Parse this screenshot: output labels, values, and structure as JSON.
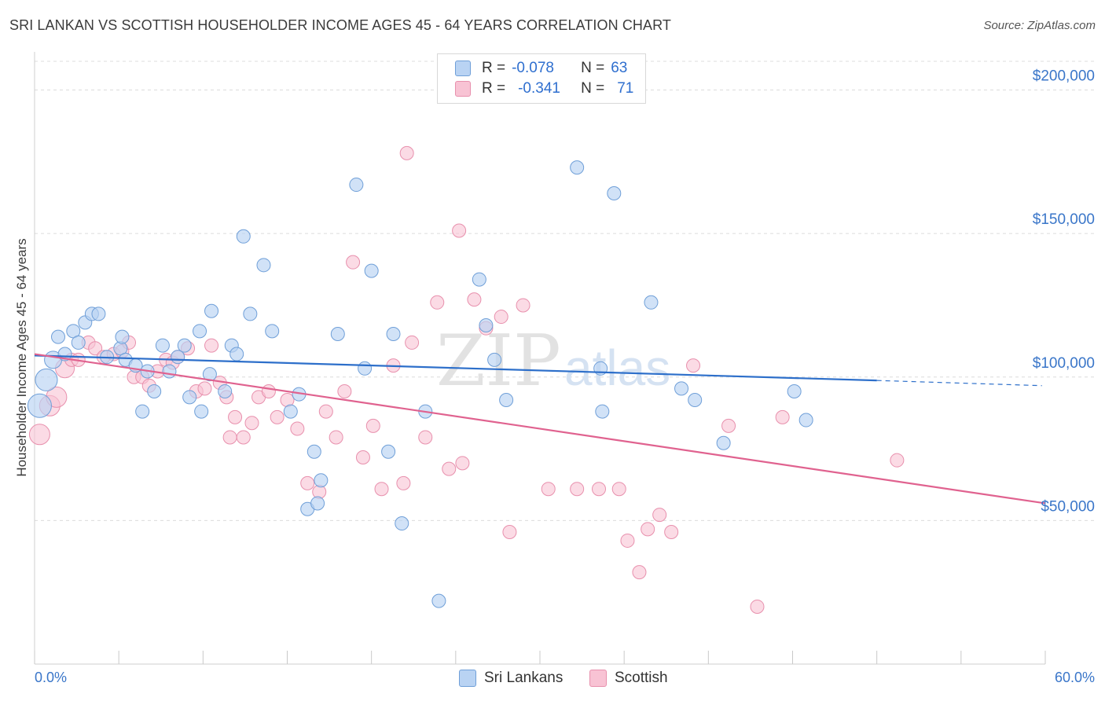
{
  "title": "SRI LANKAN VS SCOTTISH HOUSEHOLDER INCOME AGES 45 - 64 YEARS CORRELATION CHART",
  "source": "Source: ZipAtlas.com",
  "watermark": {
    "zip": "ZIP",
    "atlas": "atlas"
  },
  "legend_stats": {
    "row1": {
      "r_label": "R =",
      "r_value": "-0.078",
      "n_label": "N =",
      "n_value": "63"
    },
    "row2": {
      "r_label": "R =",
      "r_value": "-0.341",
      "n_label": "N =",
      "n_value": "71"
    }
  },
  "colors": {
    "blue_fill": "#b9d3f3",
    "blue_stroke": "#6f9fd8",
    "blue_line": "#2d6fca",
    "pink_fill": "#f8c3d4",
    "pink_stroke": "#e890ad",
    "pink_line": "#e0628f",
    "axis_label": "#3a76c9",
    "grid": "#dcdcdc"
  },
  "chart_data": {
    "type": "scatter",
    "title": "SRI LANKAN VS SCOTTISH HOUSEHOLDER INCOME AGES 45 - 64 YEARS CORRELATION CHART",
    "xlabel": "",
    "ylabel": "Householder Income Ages 45 - 64 years",
    "xlim": [
      0,
      60
    ],
    "ylim": [
      0,
      210000
    ],
    "x_tick_labels": [
      "0.0%",
      "60.0%"
    ],
    "y_ticks": [
      50000,
      100000,
      150000,
      200000
    ],
    "y_tick_labels": [
      "$50,000",
      "$100,000",
      "$150,000",
      "$200,000"
    ],
    "grid": true,
    "legend_position": "bottom-center",
    "series": [
      {
        "name": "Sri Lankans",
        "color": "#b9d3f3",
        "r": -0.078,
        "n": 63,
        "trend": {
          "x": [
            0,
            50
          ],
          "y": [
            107500,
            98800
          ],
          "dashed_extension_to_x": 59.8,
          "dashed_end_y": 97000
        },
        "points": [
          [
            0.3,
            90000
          ],
          [
            0.7,
            99000
          ],
          [
            1.1,
            106000
          ],
          [
            1.4,
            114000
          ],
          [
            1.8,
            108000
          ],
          [
            2.3,
            116000
          ],
          [
            2.6,
            112000
          ],
          [
            3.0,
            119000
          ],
          [
            3.4,
            122000
          ],
          [
            3.8,
            122000
          ],
          [
            4.3,
            107000
          ],
          [
            5.1,
            110000
          ],
          [
            5.2,
            114000
          ],
          [
            5.4,
            106000
          ],
          [
            6.0,
            104000
          ],
          [
            6.4,
            88000
          ],
          [
            6.7,
            102000
          ],
          [
            7.1,
            95000
          ],
          [
            7.6,
            111000
          ],
          [
            8.0,
            102000
          ],
          [
            8.5,
            107000
          ],
          [
            8.9,
            111000
          ],
          [
            9.2,
            93000
          ],
          [
            9.8,
            116000
          ],
          [
            9.9,
            88000
          ],
          [
            10.4,
            101000
          ],
          [
            10.5,
            123000
          ],
          [
            11.3,
            95000
          ],
          [
            11.7,
            111000
          ],
          [
            12.0,
            108000
          ],
          [
            12.4,
            149000
          ],
          [
            12.8,
            122000
          ],
          [
            13.6,
            139000
          ],
          [
            14.1,
            116000
          ],
          [
            15.2,
            88000
          ],
          [
            15.7,
            94000
          ],
          [
            16.2,
            54000
          ],
          [
            16.6,
            74000
          ],
          [
            16.8,
            56000
          ],
          [
            17.0,
            64000
          ],
          [
            18.0,
            115000
          ],
          [
            19.1,
            167000
          ],
          [
            19.6,
            103000
          ],
          [
            20.0,
            137000
          ],
          [
            21.0,
            74000
          ],
          [
            21.3,
            115000
          ],
          [
            21.8,
            49000
          ],
          [
            23.2,
            88000
          ],
          [
            24.0,
            22000
          ],
          [
            26.4,
            134000
          ],
          [
            26.8,
            118000
          ],
          [
            27.3,
            106000
          ],
          [
            28.0,
            92000
          ],
          [
            32.2,
            173000
          ],
          [
            33.6,
            103000
          ],
          [
            33.7,
            88000
          ],
          [
            34.4,
            164000
          ],
          [
            36.6,
            126000
          ],
          [
            38.4,
            96000
          ],
          [
            39.2,
            92000
          ],
          [
            40.9,
            77000
          ],
          [
            45.1,
            95000
          ],
          [
            45.8,
            85000
          ]
        ]
      },
      {
        "name": "Scottish",
        "color": "#f8c3d4",
        "r": -0.341,
        "n": 71,
        "trend": {
          "x": [
            0,
            60
          ],
          "y": [
            108000,
            56000
          ]
        },
        "points": [
          [
            0.3,
            80000
          ],
          [
            0.9,
            90000
          ],
          [
            1.3,
            93000
          ],
          [
            1.8,
            103000
          ],
          [
            2.2,
            106000
          ],
          [
            2.6,
            106000
          ],
          [
            3.2,
            112000
          ],
          [
            3.6,
            110000
          ],
          [
            4.1,
            107000
          ],
          [
            4.7,
            108000
          ],
          [
            5.2,
            109000
          ],
          [
            5.6,
            112000
          ],
          [
            5.9,
            100000
          ],
          [
            6.4,
            100000
          ],
          [
            6.8,
            97000
          ],
          [
            7.3,
            102000
          ],
          [
            7.8,
            106000
          ],
          [
            8.2,
            105000
          ],
          [
            8.5,
            107000
          ],
          [
            9.1,
            110000
          ],
          [
            9.6,
            95000
          ],
          [
            10.1,
            96000
          ],
          [
            10.5,
            111000
          ],
          [
            11.0,
            98000
          ],
          [
            11.4,
            93000
          ],
          [
            11.6,
            79000
          ],
          [
            11.9,
            86000
          ],
          [
            12.4,
            79000
          ],
          [
            12.9,
            84000
          ],
          [
            13.3,
            93000
          ],
          [
            13.9,
            95000
          ],
          [
            14.4,
            86000
          ],
          [
            15.0,
            92000
          ],
          [
            15.6,
            82000
          ],
          [
            16.2,
            63000
          ],
          [
            16.9,
            60000
          ],
          [
            17.3,
            88000
          ],
          [
            17.9,
            79000
          ],
          [
            18.4,
            95000
          ],
          [
            18.9,
            140000
          ],
          [
            19.5,
            72000
          ],
          [
            20.1,
            83000
          ],
          [
            20.6,
            61000
          ],
          [
            21.3,
            104000
          ],
          [
            21.9,
            63000
          ],
          [
            22.4,
            112000
          ],
          [
            23.2,
            79000
          ],
          [
            23.9,
            126000
          ],
          [
            24.6,
            68000
          ],
          [
            25.2,
            151000
          ],
          [
            25.4,
            70000
          ],
          [
            26.1,
            127000
          ],
          [
            26.8,
            117000
          ],
          [
            27.7,
            121000
          ],
          [
            28.2,
            46000
          ],
          [
            29.0,
            125000
          ],
          [
            30.5,
            61000
          ],
          [
            32.2,
            61000
          ],
          [
            33.5,
            61000
          ],
          [
            34.7,
            61000
          ],
          [
            35.2,
            43000
          ],
          [
            35.9,
            32000
          ],
          [
            36.4,
            47000
          ],
          [
            37.1,
            52000
          ],
          [
            37.8,
            46000
          ],
          [
            39.1,
            104000
          ],
          [
            41.2,
            83000
          ],
          [
            42.9,
            20000
          ],
          [
            44.4,
            86000
          ],
          [
            51.2,
            71000
          ],
          [
            22.1,
            178000
          ]
        ]
      }
    ]
  },
  "bottom_legend": {
    "blue_label": "Sri Lankans",
    "pink_label": "Scottish"
  }
}
